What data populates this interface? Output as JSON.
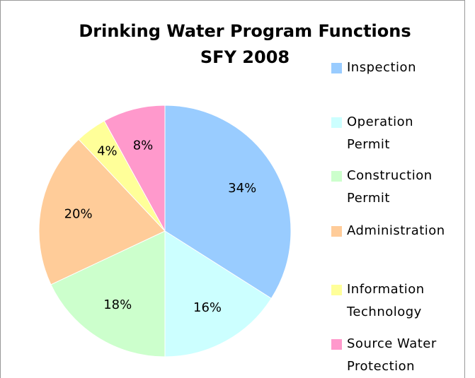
{
  "chart_data": {
    "type": "pie",
    "title": "Drinking Water Program Functions",
    "subtitle": "SFY 2008",
    "categories": [
      "Inspection",
      "Operation Permit",
      "Construction Permit",
      "Administration",
      "Information Technology",
      "Source Water Protection"
    ],
    "values": [
      34,
      16,
      18,
      20,
      4,
      8
    ],
    "value_labels": [
      "34%",
      "16%",
      "18%",
      "20%",
      "4%",
      "8%"
    ],
    "colors": [
      "#99ccff",
      "#ccffff",
      "#ccffcc",
      "#ffcc99",
      "#ffff99",
      "#ff99cc"
    ],
    "legend": "right"
  }
}
